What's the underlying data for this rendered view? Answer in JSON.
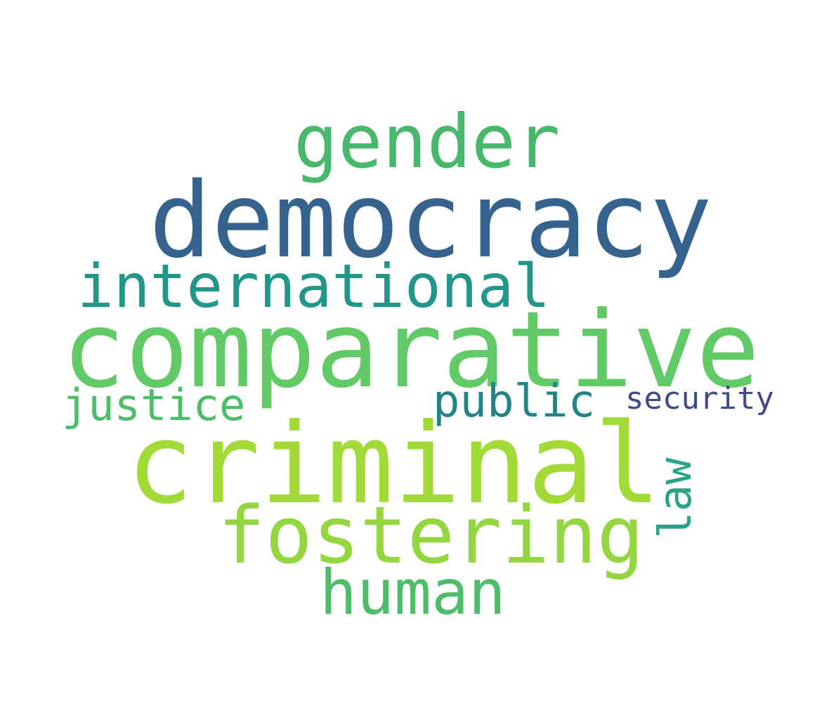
{
  "words": [
    {
      "id": "gender",
      "text": "gender",
      "color": "#48b96c"
    },
    {
      "id": "democracy",
      "text": "democracy",
      "color": "#36628e"
    },
    {
      "id": "international",
      "text": "international",
      "color": "#23968a"
    },
    {
      "id": "comparative",
      "text": "comparative",
      "color": "#61c966"
    },
    {
      "id": "justice",
      "text": "justice",
      "color": "#4cbd69"
    },
    {
      "id": "public",
      "text": "public",
      "color": "#238485"
    },
    {
      "id": "security",
      "text": "security",
      "color": "#3d4988"
    },
    {
      "id": "criminal",
      "text": "criminal",
      "color": "#a2da37"
    },
    {
      "id": "fostering",
      "text": "fostering",
      "color": "#94d640"
    },
    {
      "id": "human",
      "text": "human",
      "color": "#4dbd6b"
    },
    {
      "id": "law",
      "text": "law",
      "color": "#29a385"
    }
  ]
}
